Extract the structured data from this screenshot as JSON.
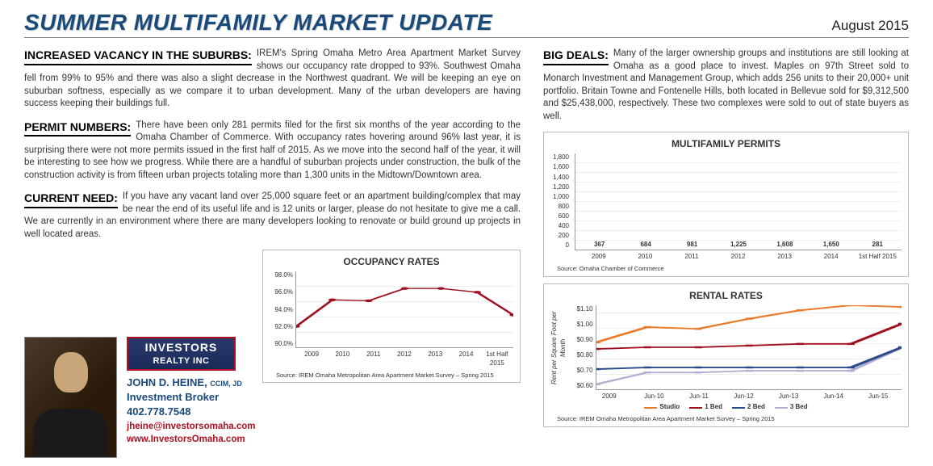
{
  "header": {
    "title": "SUMMER MULTIFAMILY MARKET UPDATE",
    "date": "August 2015"
  },
  "sections": {
    "vacancy": {
      "heading": "INCREASED VACANCY IN THE SUBURBS:",
      "body": "IREM's Spring Omaha Metro Area Apartment Market Survey shows our occupancy rate dropped to 93%. Southwest Omaha fell from 99% to 95% and there was also a slight decrease in the Northwest quadrant. We will be keeping an eye on suburban softness, especially as we compare it to urban development. Many of the urban developers are having success keeping their buildings full."
    },
    "permits": {
      "heading": "PERMIT NUMBERS:",
      "body": "There have been only 281 permits filed for the first six months of the year according to the Omaha Chamber of Commerce. With occupancy rates hovering around 96% last year, it is surprising there were not more permits issued in the first half of 2015. As we move into the second half of the year, it will be interesting to see how we progress. While there are a handful of suburban projects under construction, the bulk of the construction activity is from fifteen urban projects totaling more than 1,300 units in the Midtown/Downtown area."
    },
    "need": {
      "heading": "CURRENT NEED:",
      "body": "If you have any vacant land over 25,000 square feet or an apartment building/complex that may be near the end of its useful life and is 12 units or larger, please do not hesitate to give me a call. We are currently in an environment where there are many developers looking to renovate or build ground up projects in well located areas."
    },
    "deals": {
      "heading": "BIG DEALS:",
      "body": "Many of the larger ownership groups and institutions are still looking at Omaha as a good place to invest. Maples on 97th Street sold to Monarch Investment and Management Group, which adds 256 units to their 20,000+ unit portfolio. Britain Towne and Fontenelle Hills, both located in Bellevue sold for $9,312,500 and $25,438,000, respectively. These two complexes were sold to out of state buyers as well."
    }
  },
  "contact": {
    "logo1": "INVESTORS",
    "logo2": "REALTY INC",
    "name": "JOHN D. HEINE,",
    "suffix": "CCIM, JD",
    "role": "Investment Broker",
    "phone": "402.778.7548",
    "email": "jheine@investorsomaha.com",
    "website": "www.InvestorsOmaha.com"
  },
  "permits_chart": {
    "title": "MULTIFAMILY PERMITS",
    "categories": [
      "2009",
      "2010",
      "2011",
      "2012",
      "2013",
      "2014",
      "1st Half 2015"
    ],
    "values": [
      367,
      684,
      981,
      1225,
      1608,
      1650,
      281
    ],
    "value_labels": [
      "367",
      "684",
      "981",
      "1,225",
      "1,608",
      "1,650",
      "281"
    ],
    "ymax": 1800,
    "ytick_step": 200,
    "bar_color": "#8a0a18",
    "source": "Source: Omaha Chamber of Commerce"
  },
  "occupancy_chart": {
    "title": "OCCUPANCY RATES",
    "categories": [
      "2009",
      "2010",
      "2011",
      "2012",
      "2013",
      "2014",
      "1st Half 2015"
    ],
    "values": [
      92.2,
      95.0,
      94.9,
      96.2,
      96.2,
      95.8,
      93.4
    ],
    "ymin": 90.0,
    "ymax": 98.0,
    "yticks": [
      "90.0%",
      "92.0%",
      "94.0%",
      "96.0%",
      "98.0%"
    ],
    "line_color": "#a01020",
    "source": "Source: IREM Omaha Metropolitan Area Apartment Market Survey – Spring 2015"
  },
  "rental_chart": {
    "title": "RENTAL RATES",
    "y_title": "Rent per Square Foot per Month",
    "categories": [
      "2009",
      "Jun-10",
      "Jun-11",
      "Jun-12",
      "Jun-13",
      "Jun-14",
      "Jun-15"
    ],
    "series": {
      "studio": {
        "label": "Studio",
        "color": "#e87a2a",
        "values": [
          0.88,
          0.97,
          0.96,
          1.02,
          1.07,
          1.1,
          1.09
        ]
      },
      "b1": {
        "label": "1 Bed",
        "color": "#a01020",
        "values": [
          0.84,
          0.85,
          0.85,
          0.86,
          0.87,
          0.87,
          0.99
        ]
      },
      "b2": {
        "label": "2 Bed",
        "color": "#2a4a8a",
        "values": [
          0.72,
          0.73,
          0.73,
          0.73,
          0.73,
          0.73,
          0.85
        ]
      },
      "b3": {
        "label": "3 Bed",
        "color": "#b0b0d0",
        "values": [
          0.63,
          0.7,
          0.7,
          0.71,
          0.71,
          0.71,
          0.85
        ]
      }
    },
    "ymin": 0.6,
    "ymax": 1.1,
    "yticks": [
      "$0.60",
      "$0.70",
      "$0.80",
      "$0.90",
      "$1.00",
      "$1.10"
    ],
    "source": "Source: IREM Omaha Metropolitan Area Apartment Market Survey – Spring 2015"
  }
}
